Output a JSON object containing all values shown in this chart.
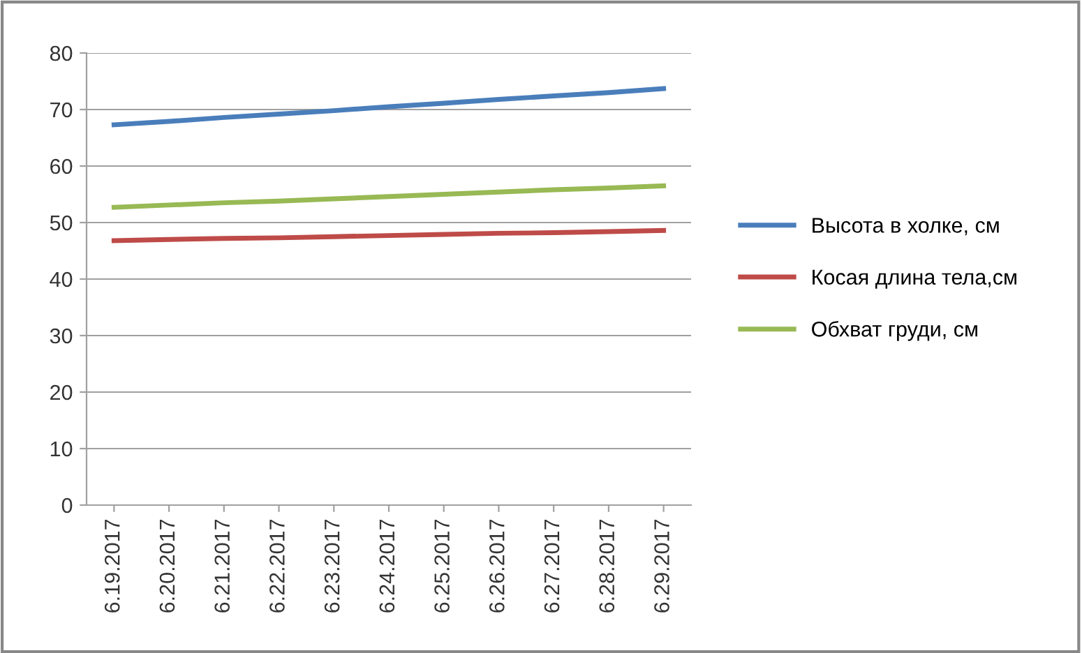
{
  "chart_data": {
    "type": "line",
    "categories": [
      "6.19.2017",
      "6.20.2017",
      "6.21.2017",
      "6.22.2017",
      "6.23.2017",
      "6.24.2017",
      "6.25.2017",
      "6.26.2017",
      "6.27.2017",
      "6.28.2017",
      "6.29.2017"
    ],
    "series": [
      {
        "name": "Высота в холке, см",
        "color": "#4a7ebb",
        "values": [
          67.3,
          67.9,
          68.6,
          69.2,
          69.8,
          70.5,
          71.1,
          71.8,
          72.4,
          73.0,
          73.7
        ]
      },
      {
        "name": "Косая длина тела,см",
        "color": "#be4b48",
        "values": [
          46.8,
          47.0,
          47.2,
          47.3,
          47.5,
          47.7,
          47.9,
          48.1,
          48.2,
          48.4,
          48.6
        ]
      },
      {
        "name": "Обхват груди, см",
        "color": "#98b954",
        "values": [
          52.7,
          53.1,
          53.5,
          53.8,
          54.2,
          54.6,
          55.0,
          55.4,
          55.8,
          56.1,
          56.5
        ]
      }
    ],
    "ylim": [
      0,
      80
    ],
    "yticks": [
      0,
      10,
      20,
      30,
      40,
      50,
      60,
      70,
      80
    ],
    "grid": "y",
    "legend": "right",
    "marker": "none",
    "line_style": "solid"
  }
}
